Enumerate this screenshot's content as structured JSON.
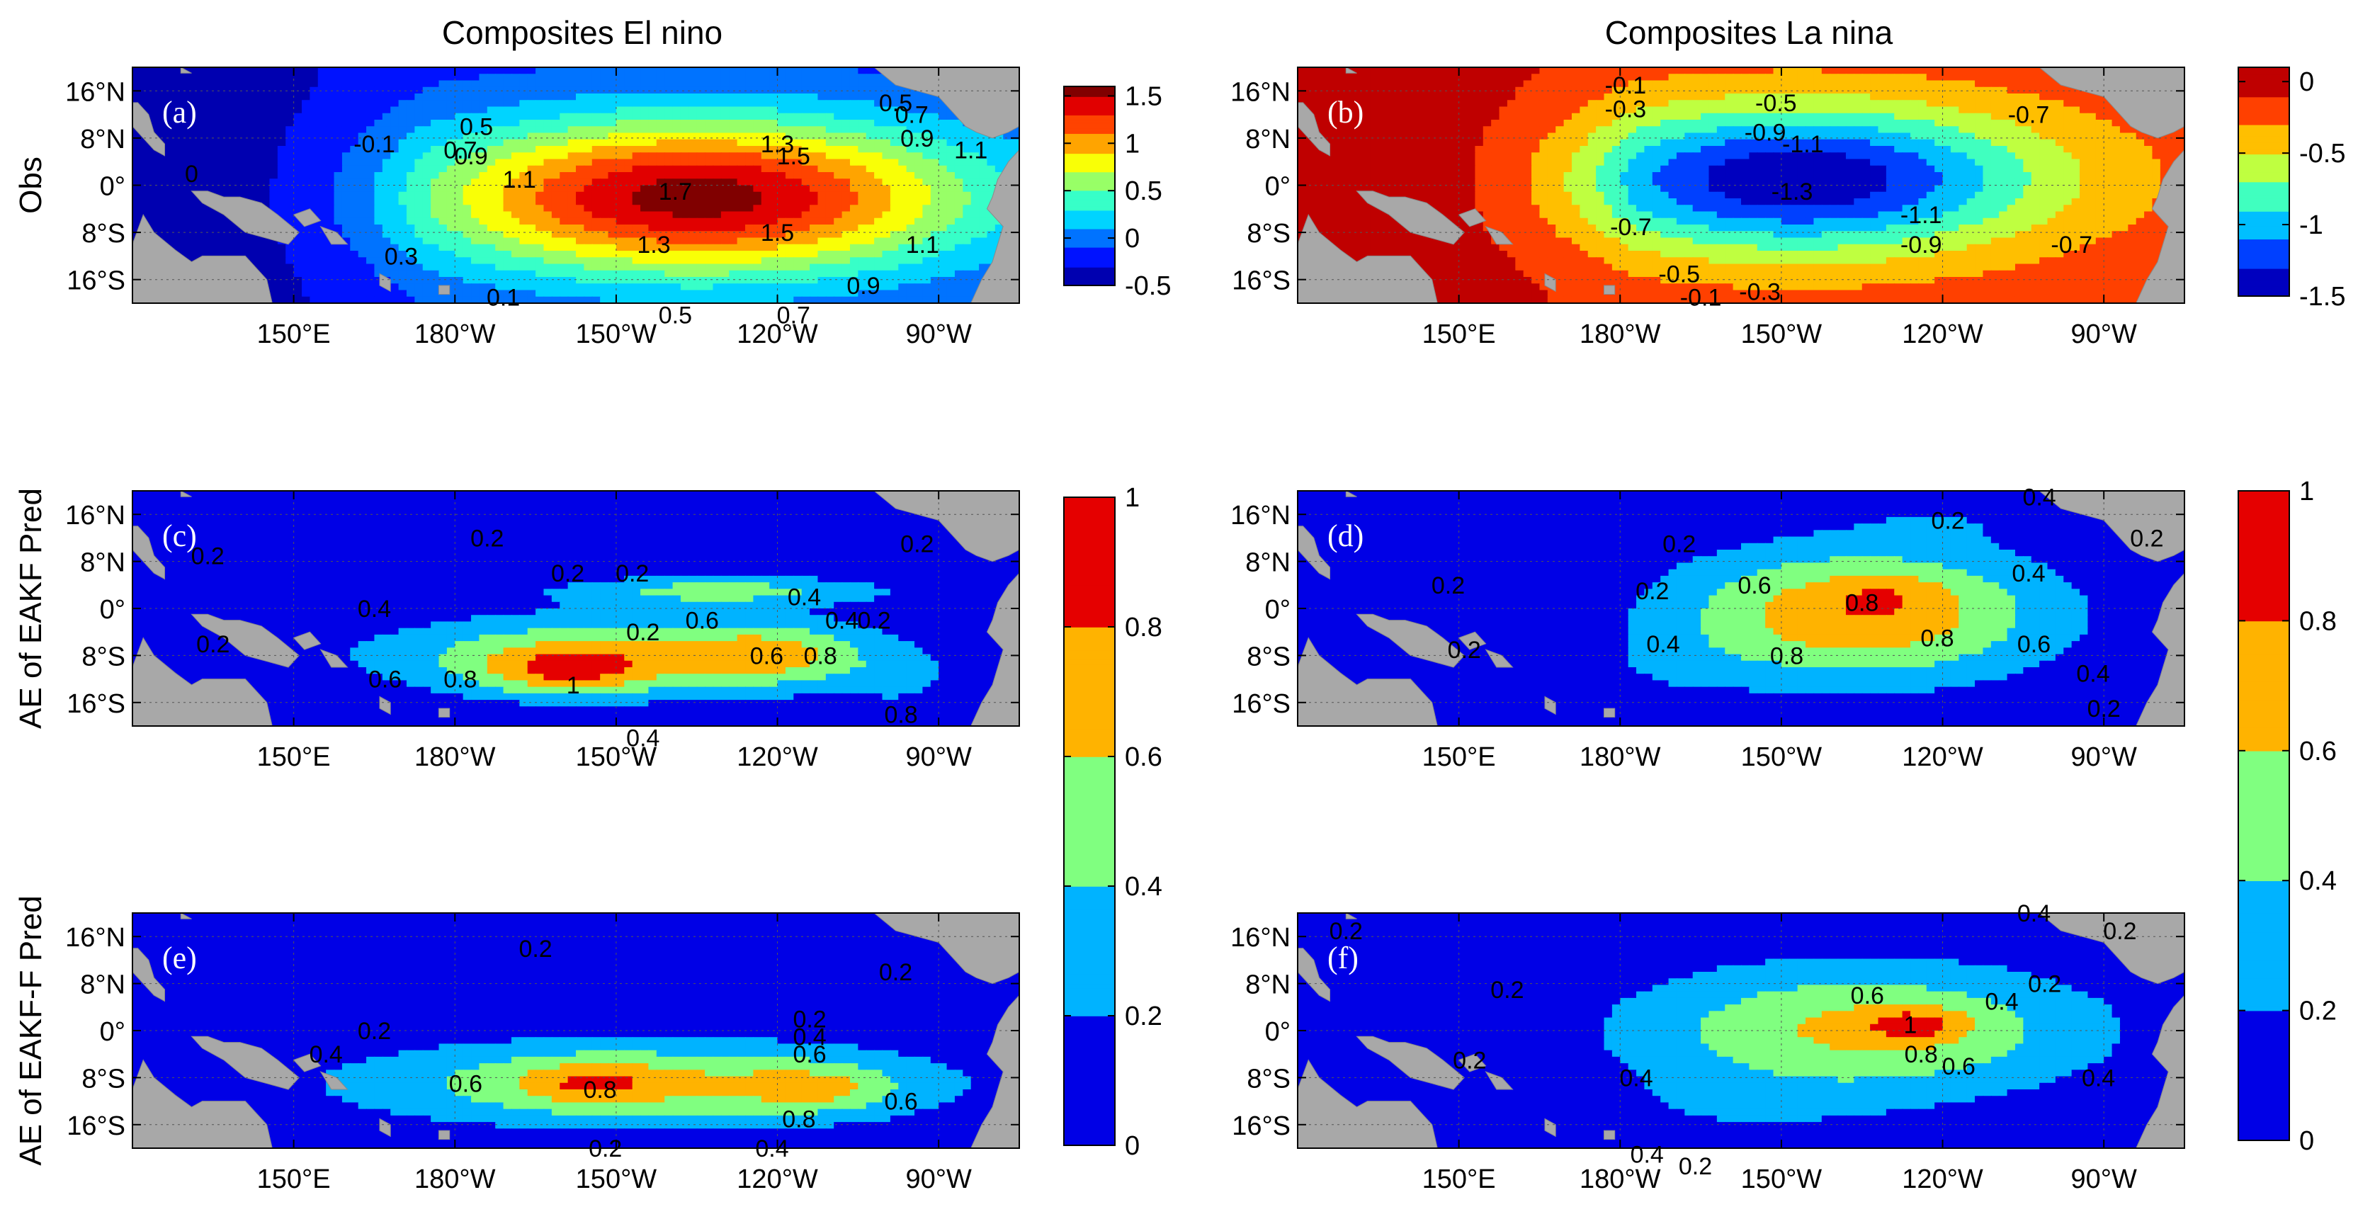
{
  "chart_data": {
    "type": "heatmap",
    "column_titles": [
      "Composites El nino",
      "Composites La nina"
    ],
    "row_labels": [
      "Obs",
      "AE of EAKF Pred",
      "AE of EAKF-F Pred"
    ],
    "x_ticks": [
      "150°E",
      "180°W",
      "150°W",
      "120°W",
      "90°W"
    ],
    "y_ticks": [
      "16°N",
      "8°N",
      "0°",
      "8°S",
      "16°S"
    ],
    "colorbars": [
      {
        "id": "obs_elnino",
        "range": [
          -0.5,
          1.6
        ],
        "ticks": [
          "1.5",
          "1",
          "0.5",
          "0",
          "-0.5"
        ]
      },
      {
        "id": "obs_lanina",
        "range": [
          -1.5,
          0.1
        ],
        "ticks": [
          "0",
          "-0.5",
          "-1",
          "-1.5"
        ]
      },
      {
        "id": "ae_elnino",
        "range": [
          0,
          1
        ],
        "ticks": [
          "1",
          "0.8",
          "0.6",
          "0.4",
          "0.2",
          "0"
        ]
      },
      {
        "id": "ae_lanina",
        "range": [
          0,
          1
        ],
        "ticks": [
          "1",
          "0.8",
          "0.6",
          "0.4",
          "0.2",
          "0"
        ]
      }
    ],
    "panels": [
      {
        "label": "(a)",
        "row": 0,
        "col": 0,
        "cbar": 0,
        "contour_labels": [
          {
            "t": "-0.1",
            "lon": 165,
            "lat": 7
          },
          {
            "t": "0",
            "lon": 131,
            "lat": 2
          },
          {
            "t": "0.3",
            "lon": 170,
            "lat": -12
          },
          {
            "t": "0.1",
            "lon": 189,
            "lat": -19
          },
          {
            "t": "0.5",
            "lon": 184,
            "lat": 10
          },
          {
            "t": "0.7",
            "lon": 181,
            "lat": 6
          },
          {
            "t": "0.9",
            "lon": 183,
            "lat": 5
          },
          {
            "t": "1.1",
            "lon": 192,
            "lat": 1
          },
          {
            "t": "1.7",
            "lon": 221,
            "lat": -1
          },
          {
            "t": "1.3",
            "lon": 240,
            "lat": 7
          },
          {
            "t": "1.5",
            "lon": 243,
            "lat": 5
          },
          {
            "t": "1.3",
            "lon": 217,
            "lat": -10
          },
          {
            "t": "1.5",
            "lon": 240,
            "lat": -8
          },
          {
            "t": "1.1",
            "lon": 267,
            "lat": -10
          },
          {
            "t": "0.9",
            "lon": 256,
            "lat": -17
          },
          {
            "t": "0.7",
            "lon": 243,
            "lat": -22
          },
          {
            "t": "0.5",
            "lon": 221,
            "lat": -22
          },
          {
            "t": "0.5",
            "lon": 262,
            "lat": 14
          },
          {
            "t": "0.7",
            "lon": 265,
            "lat": 12
          },
          {
            "t": "0.9",
            "lon": 266,
            "lat": 8
          },
          {
            "t": "1.1",
            "lon": 276,
            "lat": 6
          }
        ]
      },
      {
        "label": "(b)",
        "row": 0,
        "col": 1,
        "cbar": 1,
        "contour_labels": [
          {
            "t": "-0.1",
            "lon": 181,
            "lat": 17
          },
          {
            "t": "-0.3",
            "lon": 181,
            "lat": 13
          },
          {
            "t": "-0.5",
            "lon": 209,
            "lat": 14
          },
          {
            "t": "-0.7",
            "lon": 256,
            "lat": 12
          },
          {
            "t": "-0.9",
            "lon": 207,
            "lat": 9
          },
          {
            "t": "-1.1",
            "lon": 214,
            "lat": 7
          },
          {
            "t": "-1.3",
            "lon": 212,
            "lat": -1
          },
          {
            "t": "-0.7",
            "lon": 182,
            "lat": -7
          },
          {
            "t": "-1.1",
            "lon": 236,
            "lat": -5
          },
          {
            "t": "-0.9",
            "lon": 236,
            "lat": -10
          },
          {
            "t": "-0.7",
            "lon": 264,
            "lat": -10
          },
          {
            "t": "-0.5",
            "lon": 191,
            "lat": -15
          },
          {
            "t": "-0.1",
            "lon": 195,
            "lat": -19
          },
          {
            "t": "-0.3",
            "lon": 206,
            "lat": -18
          }
        ]
      },
      {
        "label": "(c)",
        "row": 1,
        "col": 0,
        "cbar": 2,
        "contour_labels": [
          {
            "t": "0.2",
            "lon": 134,
            "lat": 9
          },
          {
            "t": "0.2",
            "lon": 186,
            "lat": 12
          },
          {
            "t": "0.2",
            "lon": 201,
            "lat": 6
          },
          {
            "t": "0.2",
            "lon": 213,
            "lat": 6
          },
          {
            "t": "0.2",
            "lon": 266,
            "lat": 11
          },
          {
            "t": "0.4",
            "lon": 165,
            "lat": 0
          },
          {
            "t": "0.2",
            "lon": 135,
            "lat": -6
          },
          {
            "t": "0.6",
            "lon": 226,
            "lat": -2
          },
          {
            "t": "0.4",
            "lon": 245,
            "lat": 2
          },
          {
            "t": "0.4",
            "lon": 252,
            "lat": -2
          },
          {
            "t": "0.2",
            "lon": 258,
            "lat": -2
          },
          {
            "t": "0.2",
            "lon": 215,
            "lat": -4
          },
          {
            "t": "0.6",
            "lon": 167,
            "lat": -12
          },
          {
            "t": "0.8",
            "lon": 181,
            "lat": -12
          },
          {
            "t": "1",
            "lon": 202,
            "lat": -13
          },
          {
            "t": "0.6",
            "lon": 238,
            "lat": -8
          },
          {
            "t": "0.8",
            "lon": 248,
            "lat": -8
          },
          {
            "t": "0.4",
            "lon": 215,
            "lat": -22
          },
          {
            "t": "0.8",
            "lon": 263,
            "lat": -18
          }
        ]
      },
      {
        "label": "(d)",
        "row": 1,
        "col": 1,
        "cbar": 3,
        "contour_labels": [
          {
            "t": "0.2",
            "lon": 191,
            "lat": 11
          },
          {
            "t": "0.2",
            "lon": 186,
            "lat": 3
          },
          {
            "t": "0.2",
            "lon": 148,
            "lat": 4
          },
          {
            "t": "0.2",
            "lon": 151,
            "lat": -7
          },
          {
            "t": "0.2",
            "lon": 241,
            "lat": 15
          },
          {
            "t": "0.4",
            "lon": 258,
            "lat": 19
          },
          {
            "t": "0.2",
            "lon": 278,
            "lat": 12
          },
          {
            "t": "0.6",
            "lon": 205,
            "lat": 4
          },
          {
            "t": "0.4",
            "lon": 256,
            "lat": 6
          },
          {
            "t": "0.8",
            "lon": 225,
            "lat": 1
          },
          {
            "t": "0.8",
            "lon": 211,
            "lat": -8
          },
          {
            "t": "0.8",
            "lon": 239,
            "lat": -5
          },
          {
            "t": "0.6",
            "lon": 257,
            "lat": -6
          },
          {
            "t": "0.4",
            "lon": 188,
            "lat": -6
          },
          {
            "t": "0.4",
            "lon": 268,
            "lat": -11
          },
          {
            "t": "0.2",
            "lon": 270,
            "lat": -17
          }
        ]
      },
      {
        "label": "(e)",
        "row": 2,
        "col": 0,
        "cbar": 2,
        "contour_labels": [
          {
            "t": "0.2",
            "lon": 195,
            "lat": 14
          },
          {
            "t": "0.2",
            "lon": 262,
            "lat": 10
          },
          {
            "t": "0.2",
            "lon": 165,
            "lat": 0
          },
          {
            "t": "0.4",
            "lon": 156,
            "lat": -4
          },
          {
            "t": "0.6",
            "lon": 182,
            "lat": -9
          },
          {
            "t": "0.8",
            "lon": 207,
            "lat": -10
          },
          {
            "t": "0.2",
            "lon": 246,
            "lat": 2
          },
          {
            "t": "0.4",
            "lon": 246,
            "lat": -1
          },
          {
            "t": "0.6",
            "lon": 246,
            "lat": -4
          },
          {
            "t": "0.8",
            "lon": 244,
            "lat": -15
          },
          {
            "t": "0.6",
            "lon": 263,
            "lat": -12
          },
          {
            "t": "0.2",
            "lon": 208,
            "lat": -20
          },
          {
            "t": "0.4",
            "lon": 239,
            "lat": -20
          }
        ]
      },
      {
        "label": "(f)",
        "row": 2,
        "col": 1,
        "cbar": 3,
        "contour_labels": [
          {
            "t": "0.2",
            "lon": 129,
            "lat": 17
          },
          {
            "t": "0.2",
            "lon": 159,
            "lat": 7
          },
          {
            "t": "0.4",
            "lon": 257,
            "lat": 20
          },
          {
            "t": "0.2",
            "lon": 273,
            "lat": 17
          },
          {
            "t": "0.2",
            "lon": 259,
            "lat": 8
          },
          {
            "t": "0.6",
            "lon": 226,
            "lat": 6
          },
          {
            "t": "0.4",
            "lon": 251,
            "lat": 5
          },
          {
            "t": "1",
            "lon": 234,
            "lat": 1
          },
          {
            "t": "0.8",
            "lon": 236,
            "lat": -4
          },
          {
            "t": "0.6",
            "lon": 243,
            "lat": -6
          },
          {
            "t": "0.2",
            "lon": 152,
            "lat": -5
          },
          {
            "t": "0.4",
            "lon": 183,
            "lat": -8
          },
          {
            "t": "0.4",
            "lon": 269,
            "lat": -8
          },
          {
            "t": "0.4",
            "lon": 185,
            "lat": -21
          },
          {
            "t": "0.2",
            "lon": 194,
            "lat": -23
          }
        ]
      }
    ]
  }
}
